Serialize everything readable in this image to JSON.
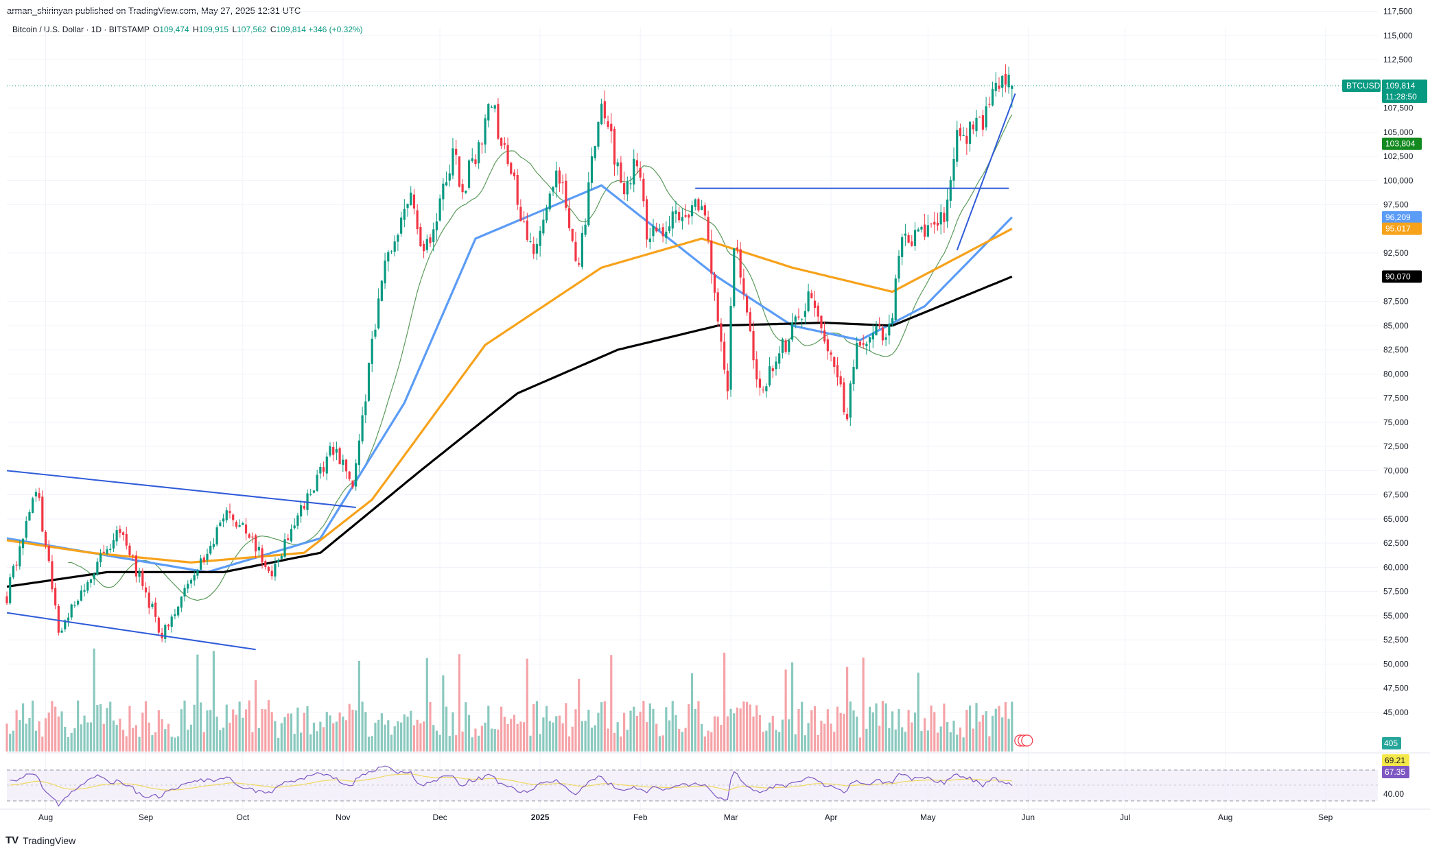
{
  "header": {
    "published": "arman_shirinyan published on TradingView.com, May 27, 2025 12:31 UTC"
  },
  "legend": {
    "symbol": "Bitcoin / U.S. Dollar · 1D · BITSTAMP",
    "o_label": "O",
    "o_value": "109,474",
    "h_label": "H",
    "h_value": "109,915",
    "l_label": "L",
    "l_value": "107,562",
    "c_label": "C",
    "c_value": "109,814",
    "change": "+346 (+0.32%)"
  },
  "brand": {
    "name": "TradingView",
    "logo": "TV"
  },
  "colors": {
    "up": "#089981",
    "down": "#f23645",
    "vol_up": "#8ac9bf",
    "vol_down": "#f5a3a8",
    "sma_fast": "#5b9a5b",
    "sma_blue": "#5b9cf6",
    "sma_orange": "#f7a21b",
    "sma_black": "#000000",
    "trendline": "#2f5bd9",
    "rsi": "#7e57c2",
    "rsi_ma": "#f0d860"
  },
  "chart_data": {
    "type": "candlestick",
    "instrument": "BTCUSD",
    "timeframe": "1D",
    "y_ticks": [
      117500,
      115000,
      112500,
      107500,
      105000,
      102500,
      100000,
      97500,
      92500,
      87500,
      85000,
      82500,
      80000,
      77500,
      75000,
      72500,
      70000,
      67500,
      65000,
      62500,
      60000,
      57500,
      55000,
      52500,
      50000,
      47500,
      45000
    ],
    "x_ticks": [
      "Aug",
      "Sep",
      "Oct",
      "Nov",
      "Dec",
      "2025",
      "Feb",
      "Mar",
      "Apr",
      "May",
      "Jun",
      "Jul",
      "Aug",
      "Sep"
    ],
    "x_range": [
      "2024-07-20",
      "2025-09-30"
    ],
    "price_key_points": [
      [
        "2024-07-20",
        57000
      ],
      [
        "2024-07-29",
        68500
      ],
      [
        "2024-08-05",
        53500
      ],
      [
        "2024-08-24",
        64000
      ],
      [
        "2024-09-06",
        53000
      ],
      [
        "2024-09-27",
        66000
      ],
      [
        "2024-10-10",
        59500
      ],
      [
        "2024-10-29",
        72500
      ],
      [
        "2024-11-04",
        68000
      ],
      [
        "2024-11-13",
        90000
      ],
      [
        "2024-11-22",
        99500
      ],
      [
        "2024-11-26",
        92000
      ],
      [
        "2024-12-05",
        103000
      ],
      [
        "2024-12-08",
        99000
      ],
      [
        "2024-12-17",
        108000
      ],
      [
        "2024-12-30",
        92000
      ],
      [
        "2025-01-06",
        102000
      ],
      [
        "2025-01-13",
        91000
      ],
      [
        "2025-01-20",
        109000
      ],
      [
        "2025-01-27",
        98000
      ],
      [
        "2025-01-31",
        102000
      ],
      [
        "2025-02-03",
        94000
      ],
      [
        "2025-02-20",
        98000
      ],
      [
        "2025-02-28",
        79000
      ],
      [
        "2025-03-02",
        94000
      ],
      [
        "2025-03-10",
        78000
      ],
      [
        "2025-03-25",
        88000
      ],
      [
        "2025-04-06",
        76000
      ],
      [
        "2025-04-09",
        83000
      ],
      [
        "2025-04-20",
        85000
      ],
      [
        "2025-04-22",
        93000
      ],
      [
        "2025-05-07",
        97000
      ],
      [
        "2025-05-10",
        104000
      ],
      [
        "2025-05-18",
        106000
      ],
      [
        "2025-05-22",
        111000
      ],
      [
        "2025-05-27",
        109814
      ]
    ],
    "last": {
      "open": 109474,
      "high": 109915,
      "low": 107562,
      "close": 109814
    },
    "moving_averages": [
      {
        "values": [
          [
            "2024-07-20",
            63000
          ],
          [
            "2024-08-24",
            61000
          ],
          [
            "2024-09-20",
            59500
          ],
          [
            "2024-10-25",
            63000
          ],
          [
            "2024-11-20",
            77000
          ],
          [
            "2024-12-12",
            94000
          ],
          [
            "2025-01-20",
            99500
          ],
          [
            "2025-02-25",
            90000
          ],
          [
            "2025-03-20",
            85000
          ],
          [
            "2025-04-10",
            83500
          ],
          [
            "2025-04-30",
            87000
          ],
          [
            "2025-05-27",
            96209
          ]
        ]
      },
      {
        "values": [
          [
            "2024-07-20",
            62800
          ],
          [
            "2024-08-15",
            61500
          ],
          [
            "2024-09-15",
            60500
          ],
          [
            "2024-10-20",
            61500
          ],
          [
            "2024-11-10",
            67000
          ],
          [
            "2024-12-15",
            83000
          ],
          [
            "2025-01-20",
            91000
          ],
          [
            "2025-02-20",
            94000
          ],
          [
            "2025-03-20",
            91000
          ],
          [
            "2025-04-20",
            88500
          ],
          [
            "2025-05-27",
            95017
          ]
        ]
      },
      {
        "values": [
          [
            "2024-07-20",
            58000
          ],
          [
            "2024-08-20",
            59500
          ],
          [
            "2024-09-25",
            59500
          ],
          [
            "2024-10-25",
            61500
          ],
          [
            "2024-11-25",
            70000
          ],
          [
            "2024-12-25",
            78000
          ],
          [
            "2025-01-25",
            82500
          ],
          [
            "2025-02-25",
            85000
          ],
          [
            "2025-03-30",
            85300
          ],
          [
            "2025-04-20",
            85000
          ],
          [
            "2025-05-27",
            90070
          ]
        ]
      }
    ],
    "drawings": {
      "channel_upper": [
        [
          "2024-07-20",
          70000
        ],
        [
          "2024-11-05",
          66200
        ]
      ],
      "channel_lower": [
        [
          "2024-07-20",
          55300
        ],
        [
          "2024-10-05",
          51500
        ]
      ],
      "resistance": [
        [
          "2025-02-18",
          99200
        ],
        [
          "2025-05-26",
          99200
        ]
      ],
      "rising_trend": [
        [
          "2025-05-10",
          92800
        ],
        [
          "2025-05-28",
          109000
        ]
      ]
    },
    "price_tags": [
      {
        "label": "BTCUSD",
        "value": "109,814",
        "sub": "11:28:50",
        "color": "#089981",
        "price": 109814
      },
      {
        "value": "103,804",
        "color": "#138a1f",
        "price": 103804
      },
      {
        "value": "96,209",
        "color": "#5b9cf6",
        "price": 96209
      },
      {
        "value": "95,017",
        "color": "#f7a21b",
        "price": 95017
      },
      {
        "value": "90,070",
        "color": "#000000",
        "price": 90070
      }
    ],
    "volume_tag": "405",
    "rsi": {
      "level_label": "40.00",
      "value": "67.35",
      "ma_value": "69.21",
      "upper": 70,
      "lower": 30
    }
  }
}
